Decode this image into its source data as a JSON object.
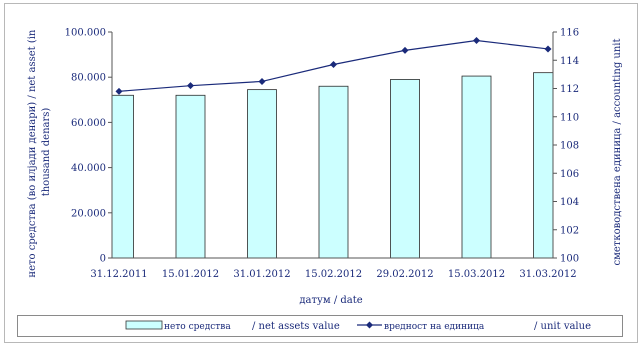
{
  "chart_data": {
    "type": "bar",
    "categories": [
      "31.12.2011",
      "15.01.2012",
      "31.01.2012",
      "15.02.2012",
      "29.02.2012",
      "15.03.2012",
      "31.03.2012"
    ],
    "series": [
      {
        "name": "нето средства",
        "type": "bar",
        "axis": "left",
        "color": "#ccffff",
        "values": [
          72000,
          72000,
          74500,
          76000,
          79000,
          80500,
          82000
        ]
      },
      {
        "name": "вредност на единица",
        "type": "line",
        "axis": "right",
        "color": "#1a2a7a",
        "values": [
          111.8,
          112.2,
          112.5,
          113.7,
          114.7,
          115.4,
          114.8
        ]
      }
    ],
    "xlabel": "датум / date",
    "ylabel_left": "нето средства (во илјади денари) / net asset (in thousand denars)",
    "ylabel_left_line1": "нето средства (во илјади денари) / net asset (in",
    "ylabel_left_line2": "thousand denars)",
    "ylabel_right": "сметководствена единица / accounting unit",
    "yleft_lim": [
      0,
      100000
    ],
    "yleft_ticks": [
      "0",
      "20.000",
      "40.000",
      "60.000",
      "80.000",
      "100.000"
    ],
    "yright_lim": [
      100,
      116
    ],
    "yright_ticks": [
      "100",
      "102",
      "104",
      "106",
      "108",
      "110",
      "112",
      "114",
      "116"
    ],
    "grid": false,
    "legend": {
      "position": "bottom",
      "bar_label": "нето средства",
      "bar_label_en": "/ net assets  value",
      "line_label": "вредност на единица",
      "line_label_en": "/ unit value"
    }
  }
}
